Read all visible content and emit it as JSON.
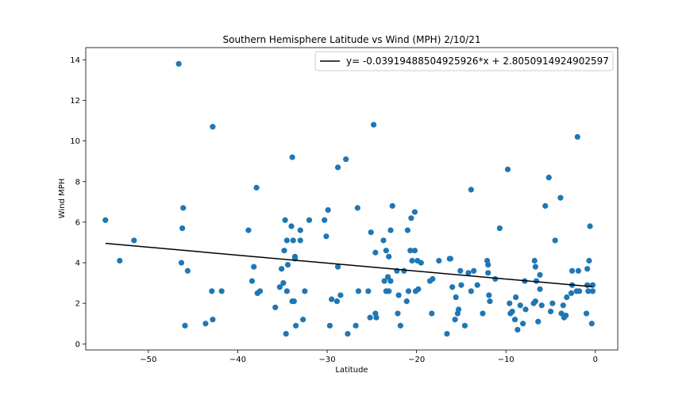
{
  "chart_data": {
    "type": "scatter",
    "title": "Southern Hemisphere Latitude vs Wind (MPH) 2/10/21",
    "xlabel": "Latitude",
    "ylabel": "Wind MPH",
    "xlim": [
      -57,
      2.5
    ],
    "ylim": [
      -0.3,
      14.6
    ],
    "x_ticks": [
      -50,
      -40,
      -30,
      -20,
      -10,
      0
    ],
    "x_tick_labels": [
      "−50",
      "−40",
      "−30",
      "−20",
      "−10",
      "0"
    ],
    "y_ticks": [
      0,
      2,
      4,
      6,
      8,
      10,
      12,
      14
    ],
    "y_tick_labels": [
      "0",
      "2",
      "4",
      "6",
      "8",
      "10",
      "12",
      "14"
    ],
    "grid": false,
    "legend_position": "top-right",
    "colors": {
      "points": "#1f77b4",
      "regression": "#000000"
    },
    "regression": {
      "label": "y= -0.03919488504925926*x + 2.8050914924902597",
      "slope": -0.03919488504925926,
      "intercept": 2.8050914924902597,
      "x_range": [
        -54.8,
        -0.3
      ]
    },
    "points": [
      [
        -54.8,
        6.1
      ],
      [
        -53.2,
        4.1
      ],
      [
        -51.6,
        5.1
      ],
      [
        -46.6,
        13.8
      ],
      [
        -46.3,
        4.0
      ],
      [
        -46.2,
        5.7
      ],
      [
        -46.1,
        6.7
      ],
      [
        -45.9,
        0.9
      ],
      [
        -45.6,
        3.6
      ],
      [
        -43.6,
        1.0
      ],
      [
        -42.9,
        2.6
      ],
      [
        -42.8,
        10.7
      ],
      [
        -42.8,
        1.2
      ],
      [
        -41.8,
        2.6
      ],
      [
        -38.8,
        5.6
      ],
      [
        -38.4,
        3.1
      ],
      [
        -38.2,
        3.8
      ],
      [
        -37.9,
        7.7
      ],
      [
        -37.8,
        2.5
      ],
      [
        -37.5,
        2.6
      ],
      [
        -35.8,
        1.8
      ],
      [
        -35.3,
        2.8
      ],
      [
        -35.1,
        3.7
      ],
      [
        -34.9,
        3.0
      ],
      [
        -34.8,
        4.6
      ],
      [
        -34.7,
        6.1
      ],
      [
        -34.6,
        0.5
      ],
      [
        -34.5,
        2.6
      ],
      [
        -34.5,
        5.1
      ],
      [
        -34.4,
        3.9
      ],
      [
        -34.0,
        5.8
      ],
      [
        -33.9,
        9.2
      ],
      [
        -33.9,
        2.1
      ],
      [
        -33.8,
        5.1
      ],
      [
        -33.7,
        2.1
      ],
      [
        -33.6,
        4.3
      ],
      [
        -33.6,
        4.2
      ],
      [
        -33.5,
        0.9
      ],
      [
        -33.0,
        5.6
      ],
      [
        -33.0,
        5.1
      ],
      [
        -32.7,
        1.2
      ],
      [
        -32.5,
        2.6
      ],
      [
        -32.0,
        6.1
      ],
      [
        -30.3,
        6.1
      ],
      [
        -30.1,
        5.3
      ],
      [
        -29.9,
        6.6
      ],
      [
        -29.7,
        0.9
      ],
      [
        -29.5,
        2.2
      ],
      [
        -28.9,
        2.1
      ],
      [
        -28.8,
        3.8
      ],
      [
        -28.8,
        8.7
      ],
      [
        -28.5,
        2.4
      ],
      [
        -27.9,
        9.1
      ],
      [
        -27.7,
        0.5
      ],
      [
        -26.8,
        0.9
      ],
      [
        -26.6,
        6.7
      ],
      [
        -26.5,
        2.6
      ],
      [
        -25.4,
        2.6
      ],
      [
        -25.2,
        1.3
      ],
      [
        -25.1,
        5.5
      ],
      [
        -24.8,
        10.8
      ],
      [
        -24.6,
        1.5
      ],
      [
        -24.6,
        4.5
      ],
      [
        -24.5,
        1.3
      ],
      [
        -23.7,
        5.1
      ],
      [
        -23.6,
        3.1
      ],
      [
        -23.4,
        4.6
      ],
      [
        -23.4,
        2.6
      ],
      [
        -23.2,
        3.3
      ],
      [
        -23.1,
        2.6
      ],
      [
        -23.1,
        4.3
      ],
      [
        -22.9,
        5.6
      ],
      [
        -22.9,
        3.1
      ],
      [
        -22.7,
        6.8
      ],
      [
        -22.2,
        3.6
      ],
      [
        -22.1,
        1.5
      ],
      [
        -22.0,
        2.4
      ],
      [
        -21.8,
        0.9
      ],
      [
        -21.4,
        3.6
      ],
      [
        -21.1,
        2.1
      ],
      [
        -21.0,
        5.6
      ],
      [
        -20.9,
        2.6
      ],
      [
        -20.7,
        4.6
      ],
      [
        -20.6,
        6.2
      ],
      [
        -20.5,
        4.1
      ],
      [
        -20.2,
        4.6
      ],
      [
        -20.2,
        6.5
      ],
      [
        -20.1,
        2.6
      ],
      [
        -19.9,
        4.1
      ],
      [
        -19.8,
        2.7
      ],
      [
        -19.5,
        4.0
      ],
      [
        -18.5,
        3.1
      ],
      [
        -18.3,
        1.5
      ],
      [
        -18.2,
        3.2
      ],
      [
        -17.5,
        4.1
      ],
      [
        -16.6,
        0.5
      ],
      [
        -16.3,
        4.2
      ],
      [
        -16.2,
        4.2
      ],
      [
        -16.0,
        2.8
      ],
      [
        -15.7,
        1.2
      ],
      [
        -15.6,
        2.3
      ],
      [
        -15.4,
        1.5
      ],
      [
        -15.3,
        1.7
      ],
      [
        -15.1,
        3.6
      ],
      [
        -15.0,
        2.9
      ],
      [
        -14.6,
        0.9
      ],
      [
        -14.2,
        3.5
      ],
      [
        -13.9,
        2.6
      ],
      [
        -13.9,
        7.6
      ],
      [
        -13.6,
        3.6
      ],
      [
        -13.2,
        2.9
      ],
      [
        -12.6,
        1.5
      ],
      [
        -12.1,
        4.1
      ],
      [
        -12.0,
        3.5
      ],
      [
        -12.0,
        3.9
      ],
      [
        -11.9,
        2.4
      ],
      [
        -11.8,
        2.1
      ],
      [
        -11.2,
        3.2
      ],
      [
        -10.7,
        5.7
      ],
      [
        -9.8,
        8.6
      ],
      [
        -9.6,
        2.0
      ],
      [
        -9.5,
        1.5
      ],
      [
        -9.3,
        1.6
      ],
      [
        -9.0,
        1.2
      ],
      [
        -8.9,
        2.3
      ],
      [
        -8.7,
        0.7
      ],
      [
        -8.4,
        1.9
      ],
      [
        -8.1,
        1.0
      ],
      [
        -7.9,
        3.1
      ],
      [
        -7.8,
        1.7
      ],
      [
        -6.9,
        2.0
      ],
      [
        -6.8,
        4.1
      ],
      [
        -6.7,
        2.1
      ],
      [
        -6.7,
        3.8
      ],
      [
        -6.6,
        3.1
      ],
      [
        -6.4,
        1.1
      ],
      [
        -6.2,
        2.7
      ],
      [
        -6.2,
        3.4
      ],
      [
        -6.0,
        1.9
      ],
      [
        -5.6,
        6.8
      ],
      [
        -5.2,
        8.2
      ],
      [
        -5.0,
        1.6
      ],
      [
        -4.8,
        2.0
      ],
      [
        -4.5,
        5.1
      ],
      [
        -3.9,
        7.2
      ],
      [
        -3.8,
        1.5
      ],
      [
        -3.6,
        1.9
      ],
      [
        -3.5,
        1.3
      ],
      [
        -3.3,
        1.4
      ],
      [
        -3.2,
        2.3
      ],
      [
        -2.7,
        2.5
      ],
      [
        -2.6,
        3.6
      ],
      [
        -2.6,
        2.9
      ],
      [
        -2.1,
        2.6
      ],
      [
        -2.0,
        10.2
      ],
      [
        -1.9,
        3.6
      ],
      [
        -1.8,
        2.6
      ],
      [
        -1.0,
        1.5
      ],
      [
        -0.9,
        2.9
      ],
      [
        -0.9,
        3.7
      ],
      [
        -0.8,
        2.6
      ],
      [
        -0.7,
        4.1
      ],
      [
        -0.6,
        5.8
      ],
      [
        -0.4,
        1.0
      ],
      [
        -0.3,
        2.9
      ],
      [
        -0.3,
        2.6
      ]
    ]
  }
}
